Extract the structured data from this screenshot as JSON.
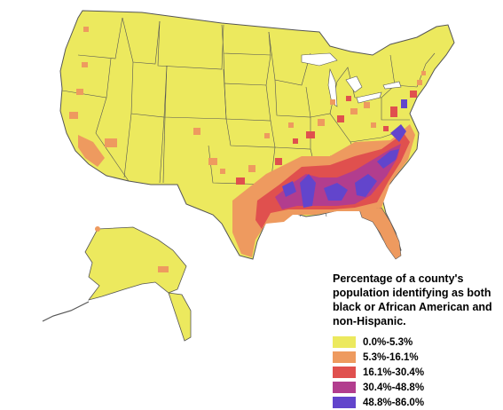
{
  "legend": {
    "title": "Percentage of a county's population identifying as both black or African American and non-Hispanic.",
    "items": [
      {
        "label": "0.0%-5.3%",
        "color": "#ece95e"
      },
      {
        "label": "5.3%-16.1%",
        "color": "#ee9a5f"
      },
      {
        "label": "16.1%-30.4%",
        "color": "#e0504e"
      },
      {
        "label": "30.4%-48.8%",
        "color": "#b23d8e"
      },
      {
        "label": "48.8%-86.0%",
        "color": "#6245cc"
      }
    ]
  },
  "colors": {
    "land": "#ece95e",
    "border": "#555555",
    "water": "#ffffff"
  }
}
